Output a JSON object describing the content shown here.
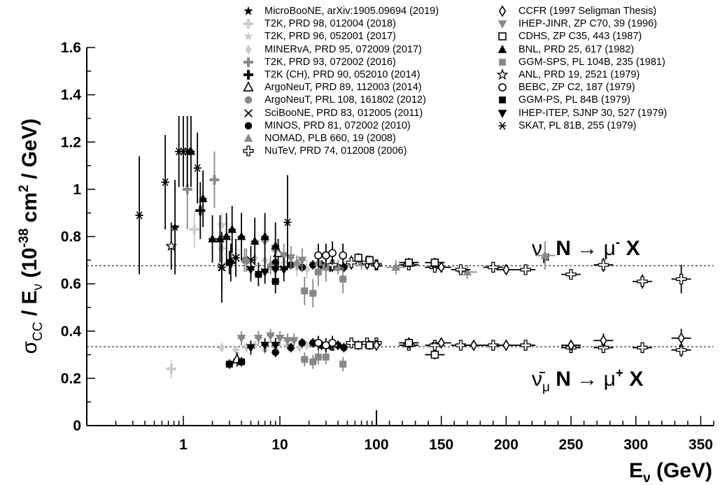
{
  "chart_data": {
    "type": "scatter",
    "title": "",
    "ylabel": "σCC / Eν (10^-38 cm^2 / GeV)",
    "xlabel": "Eν (GeV)",
    "x_scale": "log from 0.1 to 100 GeV, linear from 100 to 360 GeV",
    "ylim": [
      0,
      1.6
    ],
    "xlim": [
      0.2,
      360
    ],
    "x_ticks": [
      "1",
      "10",
      "100",
      "150",
      "200",
      "250",
      "300",
      "350"
    ],
    "y_ticks": [
      "0",
      "0.2",
      "0.4",
      "0.6",
      "0.8",
      "1",
      "1.2",
      "1.4",
      "1.6"
    ],
    "reference_lines": [
      {
        "label": "νμ N → μ- X",
        "y": 0.677
      },
      {
        "label": "ν̄μ N → μ+ X",
        "y": 0.334
      }
    ],
    "annotations": {
      "nu": {
        "symbol": "ν",
        "sub": "μ",
        "mid": "N",
        "arrow": "→",
        "lepton": "μ",
        "charge": "-",
        "end": "X"
      },
      "nubar": {
        "symbol": "ν̄",
        "sub": "μ",
        "mid": "N",
        "arrow": "→",
        "lepton": "μ",
        "charge": "+",
        "end": "X"
      }
    },
    "legend_placement": "top",
    "series": [
      {
        "name": "MicroBooNE, arXiv:1905.09694 (2019)",
        "marker": "star-filled",
        "color": "#000000",
        "neutrino": [
          [
            0.82,
            0.84,
            0.2
          ]
        ],
        "antineutrino": []
      },
      {
        "name": "T2K, PRD 98, 012004 (2018)",
        "marker": "cross",
        "color": "#cccccc",
        "neutrino": [
          [
            1.3,
            0.83,
            0.08
          ]
        ],
        "antineutrino": [
          [
            0.75,
            0.24,
            0.04
          ]
        ]
      },
      {
        "name": "T2K, PRD 96, 052001 (2017)",
        "marker": "star-filled",
        "color": "#cccccc",
        "neutrino": [
          [
            2.5,
            0.85,
            0.05
          ]
        ],
        "antineutrino": []
      },
      {
        "name": "MINERvA, PRD 95, 072009 (2017)",
        "marker": "diamond-filled",
        "color": "#cccccc",
        "neutrino": [
          [
            2.5,
            0.75,
            0.04
          ],
          [
            3.5,
            0.72,
            0.04
          ],
          [
            4.5,
            0.7,
            0.04
          ],
          [
            5.5,
            0.71,
            0.04
          ],
          [
            7,
            0.7,
            0.04
          ],
          [
            9,
            0.68,
            0.04
          ],
          [
            11,
            0.69,
            0.04
          ],
          [
            15,
            0.67,
            0.04
          ],
          [
            19,
            0.66,
            0.04
          ]
        ],
        "antineutrino": [
          [
            2.5,
            0.33,
            0.02
          ],
          [
            3.5,
            0.32,
            0.02
          ],
          [
            4.5,
            0.33,
            0.02
          ],
          [
            5.5,
            0.34,
            0.02
          ],
          [
            7,
            0.32,
            0.02
          ],
          [
            9,
            0.33,
            0.02
          ],
          [
            12,
            0.34,
            0.02
          ],
          [
            16,
            0.33,
            0.02
          ],
          [
            19,
            0.34,
            0.02
          ]
        ]
      },
      {
        "name": "T2K, PRD 93, 072002 (2016)",
        "marker": "cross",
        "color": "#888888",
        "neutrino": [
          [
            1.1,
            1.0,
            0.17
          ],
          [
            2.1,
            1.04,
            0.12
          ]
        ],
        "antineutrino": []
      },
      {
        "name": "T2K (CH), PRD 90, 052010 (2014)",
        "marker": "cross",
        "color": "#000000",
        "neutrino": [
          [
            1.5,
            0.91,
            0.12
          ],
          [
            3.1,
            0.69,
            0.08
          ]
        ],
        "antineutrino": []
      },
      {
        "name": "ArgoNeuT, PRD 89, 112003 (2014)",
        "marker": "triangle-open",
        "color": "#000000",
        "neutrino": [
          [
            9.6,
            0.73,
            0.06
          ]
        ],
        "antineutrino": [
          [
            3.6,
            0.28,
            0.03
          ]
        ]
      },
      {
        "name": "ArgoNeuT, PRL 108, 161802 (2012)",
        "marker": "circle-filled",
        "color": "#888888",
        "neutrino": [
          [
            4.3,
            0.7,
            0.05
          ]
        ],
        "antineutrino": []
      },
      {
        "name": "SciBooNE, PRD 83, 012005 (2011)",
        "marker": "x",
        "color": "#000000",
        "neutrino": [
          [
            2.5,
            0.67,
            0.1
          ],
          [
            3.5,
            0.71,
            0.08
          ],
          [
            5,
            0.7,
            0.06
          ]
        ],
        "antineutrino": []
      },
      {
        "name": "MINOS, PRD 81, 072002 (2010)",
        "marker": "circle-filled",
        "color": "#000000",
        "neutrino": [
          [
            9,
            0.69,
            0.02
          ],
          [
            13,
            0.68,
            0.02
          ],
          [
            17,
            0.67,
            0.02
          ],
          [
            22,
            0.68,
            0.02
          ],
          [
            27,
            0.68,
            0.02
          ],
          [
            33,
            0.67,
            0.02
          ],
          [
            40,
            0.67,
            0.02
          ],
          [
            46,
            0.67,
            0.02
          ]
        ],
        "antineutrino": [
          [
            9,
            0.31,
            0.02
          ],
          [
            13,
            0.33,
            0.02
          ],
          [
            17,
            0.35,
            0.02
          ],
          [
            22,
            0.35,
            0.02
          ],
          [
            27,
            0.34,
            0.02
          ],
          [
            33,
            0.34,
            0.02
          ],
          [
            40,
            0.34,
            0.02
          ],
          [
            46,
            0.33,
            0.02
          ]
        ]
      },
      {
        "name": "NOMAD, PLB 660, 19 (2008)",
        "marker": "triangle-filled",
        "color": "#888888",
        "neutrino": [
          [
            4.5,
            0.7,
            0.05
          ],
          [
            8,
            0.68,
            0.04
          ],
          [
            15,
            0.69,
            0.03
          ],
          [
            25,
            0.69,
            0.03
          ],
          [
            40,
            0.67,
            0.03
          ],
          [
            70,
            0.69,
            0.03
          ],
          [
            115,
            0.67,
            0.03
          ],
          [
            170,
            0.65,
            0.03
          ],
          [
            230,
            0.72,
            0.06
          ]
        ],
        "antineutrino": []
      },
      {
        "name": "NuTeV, PRD 74, 012008 (2006)",
        "marker": "cross-open",
        "color": "#000000",
        "neutrino": [
          [
            35,
            0.68,
            0.03
          ],
          [
            55,
            0.69,
            0.03
          ],
          [
            80,
            0.69,
            0.03
          ],
          [
            100,
            0.68,
            0.02
          ],
          [
            125,
            0.68,
            0.02
          ],
          [
            145,
            0.67,
            0.02
          ],
          [
            165,
            0.66,
            0.02
          ],
          [
            190,
            0.67,
            0.02
          ],
          [
            215,
            0.66,
            0.02
          ],
          [
            250,
            0.64,
            0.02
          ],
          [
            275,
            0.68,
            0.03
          ],
          [
            305,
            0.61,
            0.03
          ],
          [
            335,
            0.62,
            0.06
          ]
        ],
        "antineutrino": [
          [
            35,
            0.34,
            0.02
          ],
          [
            55,
            0.35,
            0.02
          ],
          [
            80,
            0.35,
            0.02
          ],
          [
            100,
            0.35,
            0.02
          ],
          [
            125,
            0.34,
            0.02
          ],
          [
            145,
            0.34,
            0.02
          ],
          [
            165,
            0.34,
            0.02
          ],
          [
            190,
            0.34,
            0.02
          ],
          [
            215,
            0.34,
            0.02
          ],
          [
            250,
            0.33,
            0.02
          ],
          [
            275,
            0.33,
            0.02
          ],
          [
            305,
            0.33,
            0.02
          ],
          [
            335,
            0.32,
            0.03
          ]
        ]
      },
      {
        "name": "CCFR (1997 Seligman Thesis)",
        "marker": "diamond-open",
        "color": "#000000",
        "neutrino": [
          [
            100,
            0.68,
            0.02
          ],
          [
            150,
            0.67,
            0.02
          ],
          [
            200,
            0.66,
            0.02
          ]
        ],
        "antineutrino": [
          [
            100,
            0.34,
            0.02
          ],
          [
            125,
            0.35,
            0.02
          ],
          [
            150,
            0.35,
            0.02
          ],
          [
            175,
            0.34,
            0.02
          ],
          [
            200,
            0.34,
            0.02
          ],
          [
            250,
            0.34,
            0.02
          ],
          [
            275,
            0.36,
            0.03
          ],
          [
            335,
            0.37,
            0.04
          ]
        ]
      },
      {
        "name": "IHEP-JINR, ZP C70, 39 (1996)",
        "marker": "triangle-down-filled",
        "color": "#888888",
        "neutrino": [
          [
            7,
            0.78,
            0.06
          ],
          [
            9,
            0.74,
            0.05
          ],
          [
            11,
            0.72,
            0.05
          ],
          [
            13,
            0.71,
            0.05
          ],
          [
            17,
            0.7,
            0.05
          ]
        ],
        "antineutrino": [
          [
            4,
            0.37,
            0.03
          ],
          [
            6,
            0.37,
            0.03
          ],
          [
            8,
            0.38,
            0.03
          ],
          [
            10,
            0.37,
            0.03
          ],
          [
            12,
            0.36,
            0.03
          ],
          [
            14,
            0.36,
            0.03
          ]
        ]
      },
      {
        "name": "CDHS, ZP C35, 443 (1987)",
        "marker": "square-open",
        "color": "#000000",
        "neutrino": [
          [
            65,
            0.71,
            0.02
          ],
          [
            85,
            0.7,
            0.02
          ],
          [
            125,
            0.69,
            0.02
          ],
          [
            145,
            0.69,
            0.02
          ]
        ],
        "antineutrino": [
          [
            65,
            0.34,
            0.02
          ],
          [
            85,
            0.34,
            0.02
          ],
          [
            125,
            0.35,
            0.02
          ],
          [
            145,
            0.3,
            0.02
          ]
        ]
      },
      {
        "name": "BNL, PRD 25, 617 (1982)",
        "marker": "triangle-filled",
        "color": "#000000",
        "neutrino": [
          [
            1.2,
            1.16,
            0.15
          ],
          [
            1.6,
            0.96,
            0.12
          ],
          [
            2,
            0.79,
            0.1
          ],
          [
            2.4,
            0.79,
            0.1
          ],
          [
            2.8,
            0.8,
            0.1
          ],
          [
            3.2,
            0.83,
            0.1
          ],
          [
            4,
            0.8,
            0.1
          ],
          [
            5.5,
            0.78,
            0.1
          ],
          [
            7,
            0.8,
            0.1
          ],
          [
            9,
            0.76,
            0.1
          ]
        ],
        "antineutrino": []
      },
      {
        "name": "GGM-SPS, PL 104B, 235 (1981)",
        "marker": "square-filled",
        "color": "#888888",
        "neutrino": [
          [
            18,
            0.57,
            0.06
          ],
          [
            22,
            0.56,
            0.06
          ],
          [
            25,
            0.65,
            0.06
          ],
          [
            30,
            0.67,
            0.06
          ],
          [
            45,
            0.62,
            0.06
          ]
        ],
        "antineutrino": [
          [
            18,
            0.28,
            0.03
          ],
          [
            22,
            0.27,
            0.03
          ],
          [
            25,
            0.29,
            0.03
          ],
          [
            30,
            0.29,
            0.03
          ],
          [
            45,
            0.26,
            0.03
          ]
        ]
      },
      {
        "name": "ANL, PRD 19, 2521 (1979)",
        "marker": "star-open",
        "color": "#000000",
        "neutrino": [
          [
            0.75,
            0.76,
            0.1
          ]
        ],
        "antineutrino": []
      },
      {
        "name": "BEBC, ZP C2, 187 (1979)",
        "marker": "circle-open",
        "color": "#000000",
        "neutrino": [
          [
            25,
            0.72,
            0.05
          ],
          [
            30,
            0.72,
            0.05
          ],
          [
            35,
            0.73,
            0.05
          ],
          [
            45,
            0.72,
            0.05
          ]
        ],
        "antineutrino": [
          [
            25,
            0.35,
            0.03
          ],
          [
            30,
            0.34,
            0.03
          ],
          [
            35,
            0.35,
            0.03
          ]
        ]
      },
      {
        "name": "GGM-PS, PL 84B (1979)",
        "marker": "square-filled",
        "color": "#000000",
        "neutrino": [
          [
            3,
            0.69,
            0.05
          ],
          [
            6,
            0.64,
            0.05
          ],
          [
            9,
            0.61,
            0.05
          ]
        ],
        "antineutrino": [
          [
            3,
            0.26,
            0.02
          ],
          [
            4,
            0.27,
            0.02
          ]
        ]
      },
      {
        "name": "IHEP-ITEP, SJNP 30, 527 (1979)",
        "marker": "triangle-down-filled",
        "color": "#000000",
        "neutrino": [
          [
            5,
            0.66,
            0.05
          ],
          [
            7,
            0.65,
            0.05
          ],
          [
            9,
            0.66,
            0.05
          ],
          [
            11,
            0.66,
            0.05
          ]
        ],
        "antineutrino": [
          [
            5,
            0.33,
            0.03
          ],
          [
            7,
            0.34,
            0.03
          ],
          [
            9,
            0.34,
            0.03
          ]
        ]
      },
      {
        "name": "SKAT, PL 81B, 255 (1979)",
        "marker": "asterisk",
        "color": "#000000",
        "neutrino": [
          [
            0.35,
            0.89,
            0.25
          ],
          [
            0.65,
            1.03,
            0.2
          ],
          [
            0.9,
            1.16,
            0.15
          ],
          [
            1.0,
            1.16,
            0.15
          ],
          [
            1.1,
            1.16,
            0.15
          ],
          [
            1.4,
            1.09,
            0.15
          ],
          [
            2.5,
            0.67,
            0.15
          ],
          [
            12,
            0.86,
            0.2
          ]
        ],
        "antineutrino": []
      }
    ]
  }
}
